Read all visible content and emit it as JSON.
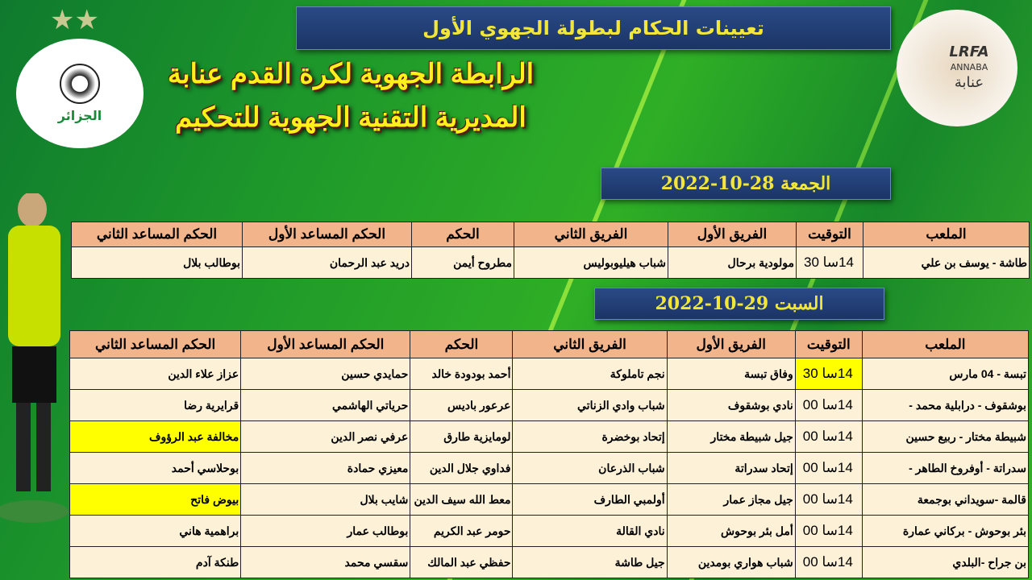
{
  "title": "تعيينات الحكام لبطولة الجهوي الأول",
  "league_line1": "الرابطة الجهوية  لكرة القدم عنابة",
  "league_line2": "المديرية التقنية الجهوية للتحكيم",
  "logos": {
    "left": "الجزائر",
    "right_text": "LRFA",
    "right_sub": "ANNABA",
    "right_ar": "عنابة"
  },
  "columns": [
    "الملعب",
    "التوقيت",
    "الفريق الأول",
    "الفريق الثاني",
    "الحكم",
    "الحكم المساعد الأول",
    "الحكم المساعد الثاني"
  ],
  "day1": {
    "date": "الجمعة 28-10-2022",
    "rows": [
      [
        "طاشة - يوسف بن علي",
        "14سا 30",
        "مولودية برحال",
        "شباب هيليوبوليس",
        "مطروح أيمن",
        "دريد عبد الرحمان",
        "بوطالب بلال"
      ]
    ]
  },
  "day2": {
    "date": "السبت 29-10-2022",
    "rows": [
      [
        "تبسة - 04 مارس",
        "14سا 30",
        "وفاق تبسة",
        "نجم تاملوكة",
        "أحمد بودودة خالد",
        "حمايدي حسين",
        "عزاز علاء الدين"
      ],
      [
        "بوشقوف - درابلية  محمد -",
        "14سا 00",
        "نادي بوشقوف",
        "شباب وادي الزناتي",
        "عرعور باديس",
        "حرياتي الهاشمي",
        "قرايرية رضا"
      ],
      [
        "شبيطة مختار - ربيع حسين",
        "14سا 00",
        "جيل شبيطة مختار",
        "إتحاد بوخضرة",
        "لومايزية طارق",
        "عرفي نصر الدين",
        "مخالفة عبد الرؤوف"
      ],
      [
        "سدراتة - أوفروخ الطاهر -",
        "14سا 00",
        "إتحاد سدراتة",
        "شباب الذرعان",
        "فداوي جلال الدين",
        "معيزي حمادة",
        "بوحلاسي أحمد"
      ],
      [
        "قالمة -سويداني بوجمعة",
        "14سا 00",
        "جيل مجاز عمار",
        "أولمبي الطارف",
        "معط الله سيف الدين",
        "شايب بلال",
        "بيوض فاتح"
      ],
      [
        "بئر بوحوش - بركاني عمارة",
        "14سا 00",
        "أمل بئر بوحوش",
        "نادي القالة",
        "حومر عبد الكريم",
        "بوطالب عمار",
        "براهمية هاني"
      ],
      [
        "بن جراح -البلدي",
        "14سا 00",
        "شباب هواري بومدين",
        "جيل طاشة",
        "حفظي عبد المالك",
        "سقسي محمد",
        "طنكة آدم"
      ]
    ],
    "highlights": [
      [
        0,
        1
      ],
      [
        2,
        6
      ],
      [
        4,
        6
      ]
    ]
  },
  "colors": {
    "header": "#f2b48a",
    "cell": "#fdf2d8",
    "highlight": "#ffff00",
    "banner": "#1b3466",
    "title_text": "#f3e63a"
  }
}
